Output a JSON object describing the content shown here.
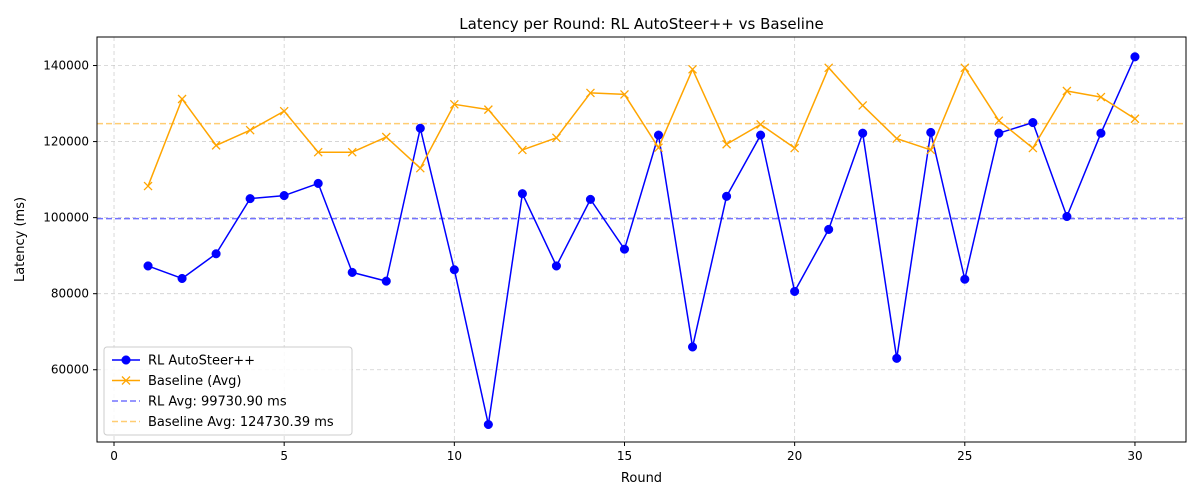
{
  "chart_data": {
    "type": "line",
    "title": "Latency per Round: RL AutoSteer++ vs Baseline",
    "xlabel": "Round",
    "ylabel": "Latency (ms)",
    "xlim": [
      -0.5,
      31.5
    ],
    "ylim": [
      41000,
      147500
    ],
    "x_ticks": [
      0,
      5,
      10,
      15,
      20,
      25,
      30
    ],
    "y_ticks": [
      60000,
      80000,
      100000,
      120000,
      140000
    ],
    "grid": true,
    "legend_position": "lower-left",
    "x": [
      1,
      2,
      3,
      4,
      5,
      6,
      7,
      8,
      9,
      10,
      11,
      12,
      13,
      14,
      15,
      16,
      17,
      18,
      19,
      20,
      21,
      22,
      23,
      24,
      25,
      26,
      27,
      28,
      29,
      30
    ],
    "series": [
      {
        "name": "RL AutoSteer++",
        "color": "#0000ff",
        "marker": "circle",
        "values": [
          87300,
          84000,
          90500,
          105000,
          105800,
          109000,
          85600,
          83300,
          123500,
          86300,
          45600,
          106300,
          87300,
          104800,
          91700,
          121700,
          66000,
          105600,
          121700,
          80600,
          96900,
          122200,
          63000,
          122400,
          83800,
          122200,
          125000,
          100300,
          122200,
          142300
        ]
      },
      {
        "name": "Baseline (Avg)",
        "color": "#ffa500",
        "marker": "x",
        "values": [
          108300,
          131200,
          119000,
          123000,
          128000,
          117200,
          117200,
          121200,
          113000,
          129800,
          128400,
          117800,
          121000,
          132800,
          132400,
          118400,
          139000,
          119300,
          124500,
          118300,
          139400,
          129500,
          120800,
          117800,
          139400,
          125500,
          118300,
          133300,
          131700,
          126000
        ]
      }
    ],
    "reference_lines": [
      {
        "name": "RL Avg: 99730.90 ms",
        "value": 99730.9,
        "color": "#0000ff",
        "style": "dashed"
      },
      {
        "name": "Baseline Avg: 124730.39 ms",
        "value": 124730.39,
        "color": "#ffa500",
        "style": "dashed"
      }
    ]
  }
}
